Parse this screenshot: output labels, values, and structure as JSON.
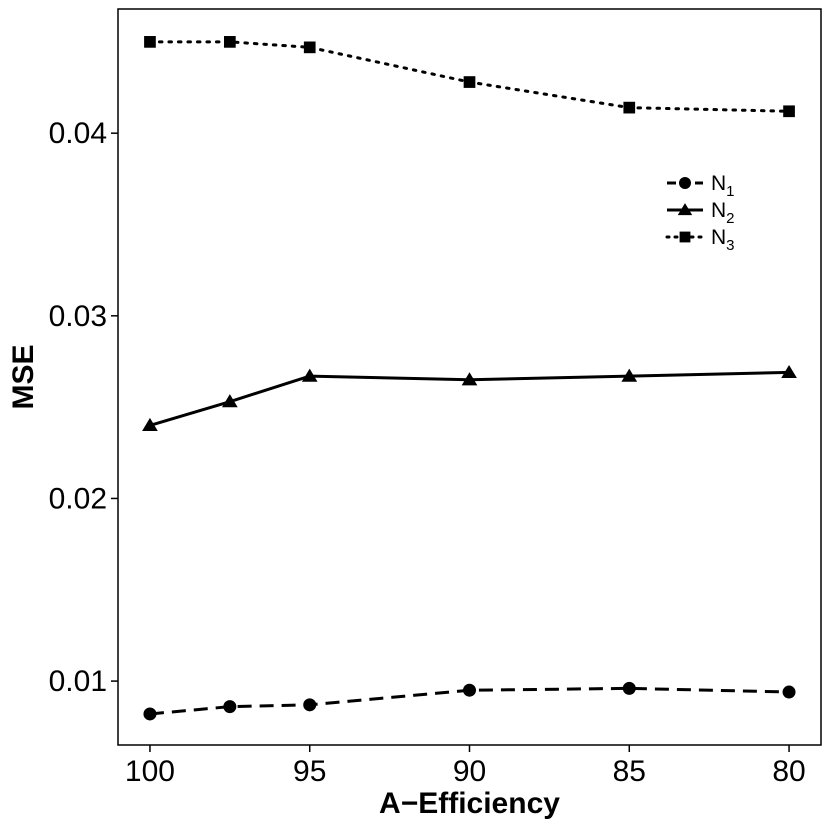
{
  "chart_data": {
    "type": "line",
    "title": "",
    "xlabel": "A−Efficiency",
    "ylabel": "MSE",
    "x": [
      100,
      97.5,
      95,
      90,
      85,
      80
    ],
    "xlim": [
      101,
      79
    ],
    "ylim": [
      0.0065,
      0.0468
    ],
    "xticks": [
      100,
      95,
      90,
      85,
      80
    ],
    "xtick_labels": [
      "100",
      "95",
      "90",
      "85",
      "80"
    ],
    "yticks": [
      0.01,
      0.02,
      0.03,
      0.04
    ],
    "ytick_labels": [
      "0.01",
      "0.02",
      "0.03",
      "0.04"
    ],
    "grid": false,
    "legend_position": "top-right",
    "series": [
      {
        "name": "N1",
        "label_base": "N",
        "label_sub": "1",
        "marker": "circle",
        "line_style": "dashed",
        "values": [
          0.0082,
          0.0086,
          0.0087,
          0.0095,
          0.0096,
          0.0094
        ]
      },
      {
        "name": "N2",
        "label_base": "N",
        "label_sub": "2",
        "marker": "triangle",
        "line_style": "solid",
        "values": [
          0.024,
          0.0253,
          0.0267,
          0.0265,
          0.0267,
          0.0269
        ]
      },
      {
        "name": "N3",
        "label_base": "N",
        "label_sub": "3",
        "marker": "square",
        "line_style": "dotted",
        "values": [
          0.045,
          0.045,
          0.0447,
          0.0428,
          0.0414,
          0.0412
        ]
      }
    ]
  }
}
